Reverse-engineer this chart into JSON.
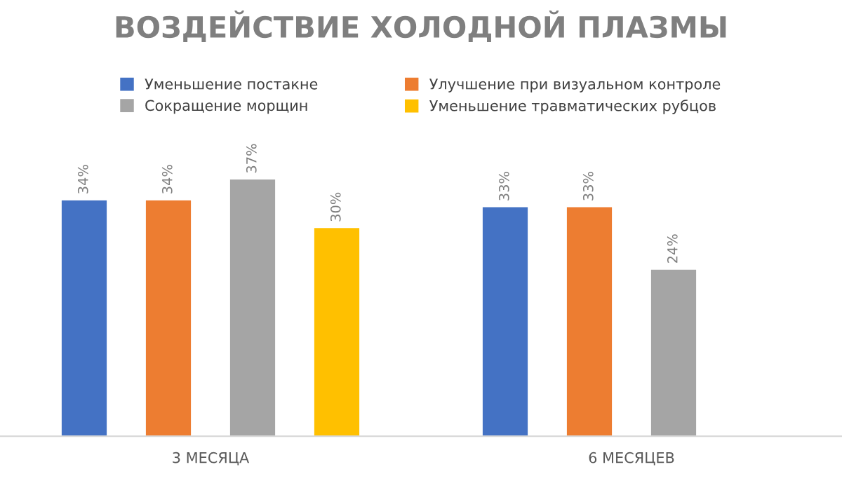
{
  "chart_data": {
    "type": "bar",
    "title": "ВОЗДЕЙСТВИЕ ХОЛОДНОЙ ПЛАЗМЫ",
    "categories": [
      "3 МЕСЯЦА",
      "6 МЕСЯЦЕВ"
    ],
    "series": [
      {
        "name": "Уменьшение постакне",
        "color": "#4472c4",
        "values": [
          34,
          33
        ],
        "value_labels": [
          "34%",
          "33%"
        ]
      },
      {
        "name": "Улучшение при визуальном контроле",
        "color": "#ed7d31",
        "values": [
          34,
          33
        ],
        "value_labels": [
          "34%",
          "33%"
        ]
      },
      {
        "name": "Сокращение морщин",
        "color": "#a5a5a5",
        "values": [
          37,
          24
        ],
        "value_labels": [
          "37%",
          "24%"
        ]
      },
      {
        "name": "Уменьшение травматических рубцов",
        "color": "#ffc000",
        "values": [
          30,
          null
        ],
        "value_labels": [
          "30%",
          null
        ]
      }
    ],
    "legend": "top",
    "grid": false
  }
}
